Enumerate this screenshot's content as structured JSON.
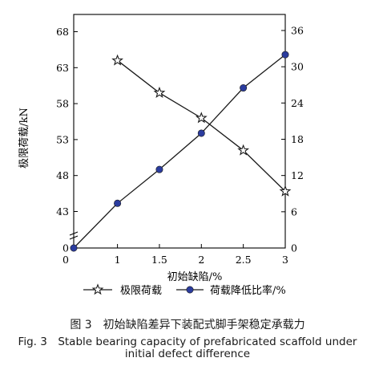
{
  "chart_data": {
    "type": "line",
    "xlabel": "初始缺陷/%",
    "ylabel_left": "极限荷载/kN",
    "x_ticks": [
      "0",
      "1",
      "1.5",
      "2",
      "2.5",
      "3"
    ],
    "y_left_ticks": [
      "0",
      "43",
      "48",
      "53",
      "58",
      "63",
      "68"
    ],
    "y_right_ticks": [
      "0",
      "6",
      "12",
      "18",
      "24",
      "30",
      "36"
    ],
    "legend_placement": "bottom",
    "grid": false,
    "series": [
      {
        "name": "极限荷载",
        "axis": "left",
        "marker": "star",
        "x": [
          1,
          1.5,
          2,
          2.5,
          3
        ],
        "values": [
          64.0,
          59.5,
          56.0,
          51.5,
          45.8
        ]
      },
      {
        "name": "荷载降低比率/%",
        "axis": "right",
        "marker": "circle",
        "x": [
          0,
          1,
          1.5,
          2,
          2.5,
          3
        ],
        "values": [
          0,
          7.4,
          13.0,
          19.0,
          26.5,
          32.0
        ]
      }
    ]
  },
  "colors": {
    "axis": "#000000",
    "star_line": "#1a1a1a",
    "circle_fill": "#2b3c9e",
    "circle_line": "#1a1a1a"
  },
  "caption": {
    "cn": "图 3　初始缺陷差异下装配式脚手架稳定承载力",
    "en_line1": "Fig. 3　Stable bearing capacity of prefabricated scaffold under",
    "en_line2": "initial defect difference"
  }
}
